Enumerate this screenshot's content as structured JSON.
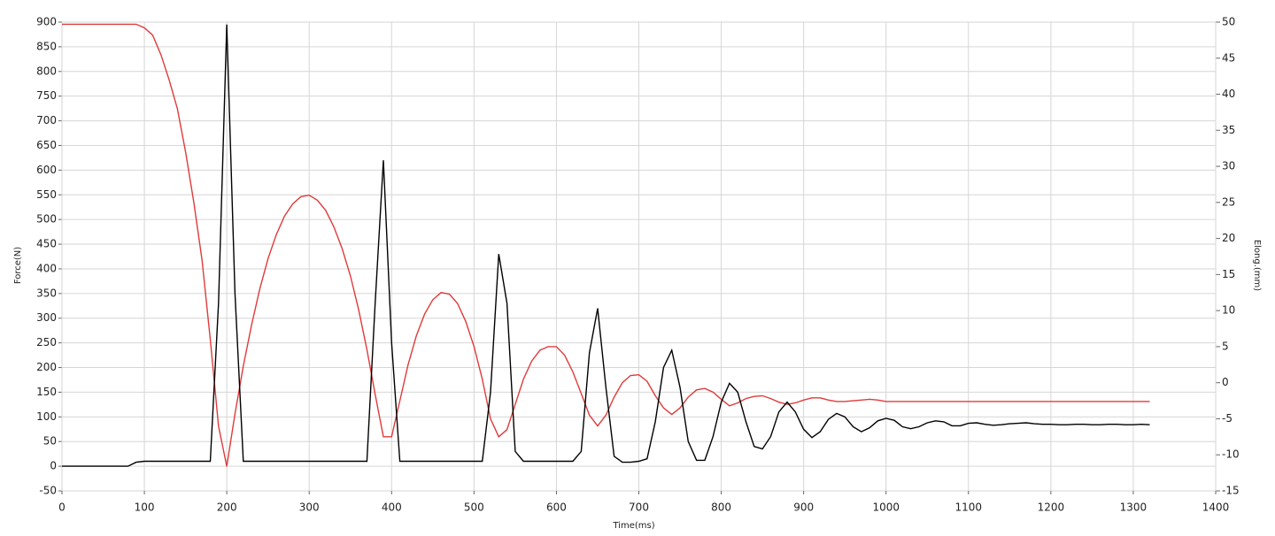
{
  "chart_data": {
    "type": "line",
    "x_label": "Time(ms)",
    "y_label": "Force(N)",
    "y2_label": "Elong.(mm)",
    "x": [
      0,
      10,
      20,
      30,
      40,
      50,
      60,
      70,
      80,
      90,
      100,
      110,
      120,
      130,
      140,
      150,
      160,
      170,
      180,
      190,
      200,
      210,
      220,
      230,
      240,
      250,
      260,
      270,
      280,
      290,
      300,
      310,
      320,
      330,
      340,
      350,
      360,
      370,
      380,
      390,
      400,
      410,
      420,
      430,
      440,
      450,
      460,
      470,
      480,
      490,
      500,
      510,
      520,
      530,
      540,
      550,
      560,
      570,
      580,
      590,
      600,
      610,
      620,
      630,
      640,
      650,
      660,
      670,
      680,
      690,
      700,
      710,
      720,
      730,
      740,
      750,
      760,
      770,
      780,
      790,
      800,
      810,
      820,
      830,
      840,
      850,
      860,
      870,
      880,
      890,
      900,
      910,
      920,
      930,
      940,
      950,
      960,
      970,
      980,
      990,
      1000,
      1010,
      1020,
      1030,
      1040,
      1050,
      1060,
      1070,
      1080,
      1090,
      1100,
      1110,
      1120,
      1130,
      1140,
      1150,
      1160,
      1170,
      1180,
      1190,
      1200,
      1210,
      1220,
      1230,
      1240,
      1250,
      1260,
      1270,
      1280,
      1290,
      1300,
      1310,
      1320
    ],
    "series": [
      {
        "color": "#000000",
        "values": [
          0,
          0,
          0,
          0,
          0,
          0,
          0,
          0,
          0,
          8,
          10,
          10,
          10,
          10,
          10,
          10,
          10,
          10,
          10,
          330,
          895,
          350,
          10,
          10,
          10,
          10,
          10,
          10,
          10,
          10,
          10,
          10,
          10,
          10,
          10,
          10,
          10,
          10,
          330,
          620,
          250,
          10,
          10,
          10,
          10,
          10,
          10,
          10,
          10,
          10,
          10,
          10,
          150,
          430,
          330,
          30,
          10,
          10,
          10,
          10,
          10,
          10,
          10,
          30,
          230,
          320,
          160,
          20,
          8,
          8,
          10,
          15,
          90,
          200,
          235,
          160,
          50,
          12,
          12,
          60,
          130,
          168,
          150,
          90,
          40,
          35,
          60,
          110,
          130,
          110,
          75,
          58,
          70,
          95,
          107,
          100,
          80,
          70,
          78,
          92,
          97,
          93,
          80,
          76,
          80,
          88,
          92,
          90,
          82,
          82,
          87,
          88,
          85,
          83,
          84,
          86,
          87,
          88,
          86,
          85,
          85,
          84,
          84,
          85,
          85,
          84,
          84,
          85,
          85,
          84,
          84,
          85,
          84
        ]
      },
      {
        "color": "#e03a3a",
        "axis": "y2",
        "values": [
          49.7,
          49.7,
          49.7,
          49.7,
          49.7,
          49.7,
          49.7,
          49.7,
          49.7,
          49.7,
          49.2,
          48.2,
          45.5,
          42,
          38,
          32,
          25,
          17,
          6,
          -6,
          -11.6,
          -4.3,
          2.3,
          8,
          13,
          17.2,
          20.5,
          23.1,
          24.8,
          25.8,
          26,
          25.3,
          23.9,
          21.6,
          18.6,
          14.8,
          10.1,
          4.6,
          -1.6,
          -7.5,
          -7.5,
          -2.5,
          2.5,
          6.5,
          9.5,
          11.5,
          12.5,
          12.3,
          11,
          8.5,
          5,
          0.5,
          -5,
          -7.5,
          -6.5,
          -3,
          0.5,
          3,
          4.5,
          5,
          5,
          3.8,
          1.5,
          -1.5,
          -4.5,
          -6,
          -4.5,
          -2,
          0,
          1,
          1.1,
          0.2,
          -1.8,
          -3.5,
          -4.4,
          -3.5,
          -2,
          -1,
          -0.8,
          -1.3,
          -2.3,
          -3.2,
          -2.8,
          -2.2,
          -1.9,
          -1.8,
          -2.2,
          -2.7,
          -3,
          -2.8,
          -2.4,
          -2.1,
          -2.1,
          -2.4,
          -2.6,
          -2.6,
          -2.5,
          -2.4,
          -2.3,
          -2.4,
          -2.6,
          -2.6,
          -2.6,
          -2.6,
          -2.6,
          -2.6,
          -2.6,
          -2.6,
          -2.6,
          -2.6,
          -2.6,
          -2.6,
          -2.6,
          -2.6,
          -2.6,
          -2.6,
          -2.6,
          -2.6,
          -2.6,
          -2.6,
          -2.6,
          -2.6,
          -2.6,
          -2.6,
          -2.6,
          -2.6,
          -2.6,
          -2.6,
          -2.6,
          -2.6,
          -2.6,
          -2.6,
          -2.6
        ]
      }
    ],
    "xlim": [
      0,
      1400
    ],
    "xticks": [
      0,
      100,
      200,
      300,
      400,
      500,
      600,
      700,
      800,
      900,
      1000,
      1100,
      1200,
      1300,
      1400
    ],
    "ylim": [
      -50,
      900
    ],
    "yticks": [
      -50,
      0,
      50,
      100,
      150,
      200,
      250,
      300,
      350,
      400,
      450,
      500,
      550,
      600,
      650,
      700,
      750,
      800,
      850,
      900
    ],
    "y2lim": [
      -15,
      50
    ],
    "y2ticks": [
      -15,
      -10,
      -5,
      0,
      5,
      10,
      15,
      20,
      25,
      30,
      35,
      40,
      45,
      50
    ],
    "grid": true
  }
}
